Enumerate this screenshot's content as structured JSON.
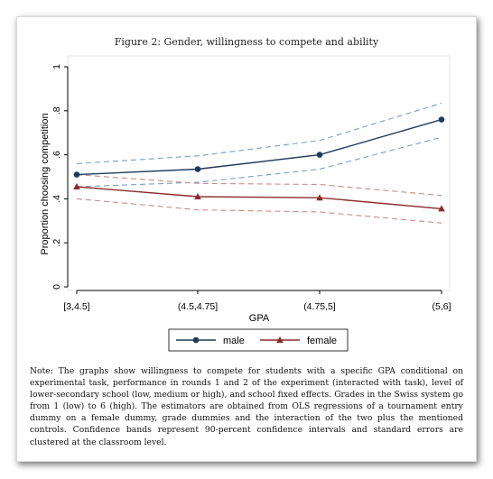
{
  "figure_title": "Figure 2: Gender, willingness to compete and ability",
  "note": "Note: The graphs show willingness to compete for students with a specific GPA conditional on experimental task, performance in rounds 1 and 2 of the experiment (interacted with task), level of lower-secondary school (low, medium or high), and school fixed effects. Grades in the Swiss system go from 1 (low) to 6 (high). The estimators are obtained from OLS regressions of a tournament entry dummy on a female dummy, grade dummies and the interaction of the two plus the mentioned controls. Confidence bands represent 90-percent confidence intervals and standard errors are clustered at the classroom level.",
  "colors": {
    "male": "#1f3b5a",
    "male_ci": "#7b9fc9",
    "female": "#8b2b2b",
    "female_ci": "#c98a8a",
    "axis": "#000000"
  },
  "chart_data": {
    "type": "line",
    "categories": [
      "[3,4.5]",
      "(4.5,4.75]",
      "(4.75,5]",
      "(5,6]"
    ],
    "xlabel": "GPA",
    "ylabel": "Proportion choosing competition",
    "ylim": [
      0,
      1
    ],
    "yticks": [
      0,
      0.2,
      0.4,
      0.6,
      0.8,
      1
    ],
    "ytick_labels": [
      "0",
      ".2",
      ".4",
      ".6",
      ".8",
      "1"
    ],
    "grid": false,
    "legend_position": "bottom",
    "series": [
      {
        "name": "male",
        "values": [
          0.51,
          0.535,
          0.6,
          0.76
        ],
        "ci_upper": [
          0.56,
          0.595,
          0.665,
          0.835
        ],
        "ci_lower": [
          0.455,
          0.475,
          0.535,
          0.68
        ]
      },
      {
        "name": "female",
        "values": [
          0.455,
          0.41,
          0.405,
          0.355
        ],
        "ci_upper": [
          0.51,
          0.47,
          0.465,
          0.415
        ],
        "ci_lower": [
          0.4,
          0.35,
          0.34,
          0.29
        ]
      }
    ]
  }
}
